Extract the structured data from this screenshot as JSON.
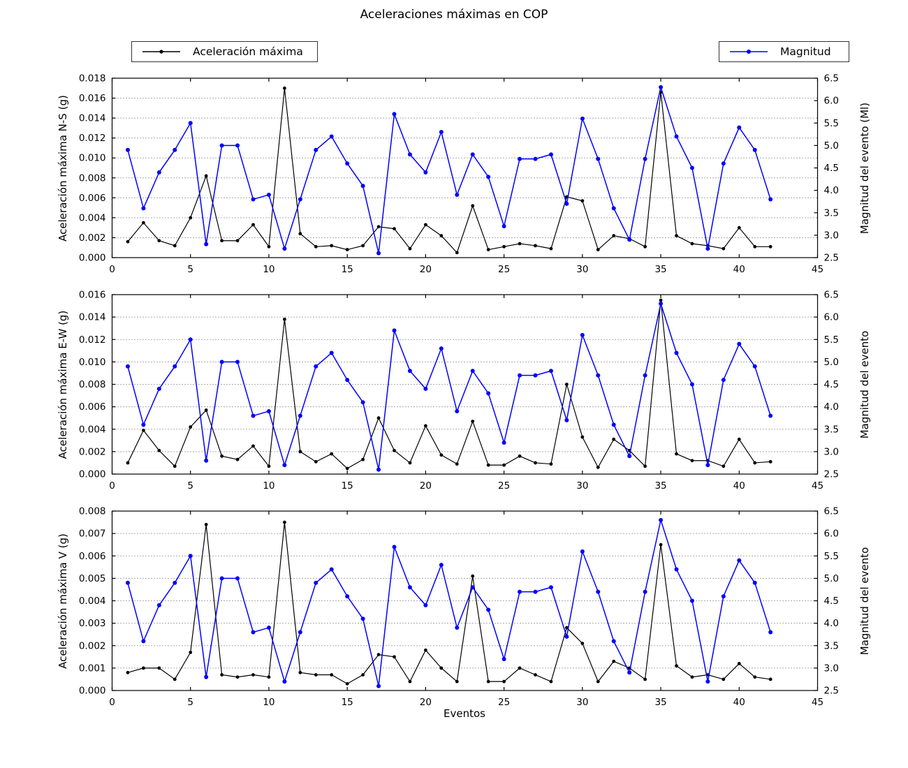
{
  "title": "Aceleraciones máximas en COP",
  "legend": {
    "acceleration_label": "Aceleración máxima",
    "magnitude_label": "Magnitud"
  },
  "colors": {
    "acceleration": "#000000",
    "magnitude": "#0000ff",
    "grid": "#555555",
    "axis": "#000000",
    "background": "#ffffff"
  },
  "chart_data": {
    "type": "line",
    "title": "Aceleraciones máximas en COP",
    "xlabel": "Eventos",
    "xlim": [
      0,
      45
    ],
    "xtick_step": 5,
    "grid": "dotted",
    "legend_position": "top-left and top-right",
    "x": [
      1,
      2,
      3,
      4,
      5,
      6,
      7,
      8,
      9,
      10,
      11,
      12,
      13,
      14,
      15,
      16,
      17,
      18,
      19,
      20,
      21,
      22,
      23,
      24,
      25,
      26,
      27,
      28,
      29,
      30,
      31,
      32,
      33,
      34,
      35,
      36,
      37,
      38,
      39,
      40,
      41,
      42
    ],
    "right_axis": {
      "min": 2.5,
      "max": 6.5,
      "tick_step": 0.5
    },
    "magnitude_series": {
      "name": "Magnitud",
      "axis": "right",
      "values": [
        4.9,
        3.6,
        4.4,
        4.9,
        5.5,
        2.8,
        5.0,
        5.0,
        3.8,
        3.9,
        2.7,
        3.8,
        4.9,
        5.2,
        4.6,
        4.1,
        2.6,
        5.7,
        4.8,
        4.4,
        5.3,
        3.9,
        4.8,
        4.3,
        3.2,
        4.7,
        4.7,
        4.8,
        3.7,
        5.6,
        4.7,
        3.6,
        2.9,
        4.7,
        6.3,
        5.2,
        4.5,
        2.7,
        4.6,
        5.4,
        4.9,
        3.8
      ]
    },
    "subplots": [
      {
        "ylabel": "Aceleración máxima N-S (g)",
        "y2label": "Magnitud del evento (Ml)",
        "ylim": [
          0,
          0.018
        ],
        "ytick_step": 0.002,
        "acceleration_name": "Aceleración máxima",
        "acceleration_values": [
          0.0016,
          0.0035,
          0.0017,
          0.0012,
          0.004,
          0.0082,
          0.0017,
          0.0017,
          0.0033,
          0.0011,
          0.017,
          0.0024,
          0.0011,
          0.0012,
          0.0008,
          0.0012,
          0.0031,
          0.0029,
          0.0009,
          0.0033,
          0.0022,
          0.0005,
          0.0052,
          0.0008,
          0.0011,
          0.0014,
          0.0012,
          0.0009,
          0.0061,
          0.0057,
          0.0008,
          0.0022,
          0.0019,
          0.0011,
          0.0166,
          0.0022,
          0.0014,
          0.0012,
          0.0009,
          0.003,
          0.0011,
          0.0011
        ]
      },
      {
        "ylabel": "Aceleración máxima E-W (g)",
        "y2label": "Magnitud del evento",
        "ylim": [
          0,
          0.016
        ],
        "ytick_step": 0.002,
        "acceleration_name": "Aceleración máxima",
        "acceleration_values": [
          0.001,
          0.0039,
          0.0021,
          0.0007,
          0.0042,
          0.0057,
          0.0016,
          0.0013,
          0.0025,
          0.0007,
          0.0138,
          0.002,
          0.0011,
          0.0018,
          0.0005,
          0.0013,
          0.005,
          0.0021,
          0.001,
          0.0043,
          0.0017,
          0.0009,
          0.0047,
          0.0008,
          0.0008,
          0.0016,
          0.001,
          0.0009,
          0.008,
          0.0033,
          0.0006,
          0.0031,
          0.0021,
          0.0007,
          0.0155,
          0.0018,
          0.0012,
          0.0012,
          0.0007,
          0.0031,
          0.001,
          0.0011
        ]
      },
      {
        "ylabel": "Aceleración máxima V (g)",
        "y2label": "Magnitud del evento",
        "ylim": [
          0,
          0.008
        ],
        "ytick_step": 0.001,
        "acceleration_name": "Aceleración máxima",
        "acceleration_values": [
          0.0008,
          0.001,
          0.001,
          0.0005,
          0.0017,
          0.0074,
          0.0007,
          0.0006,
          0.0007,
          0.0006,
          0.0075,
          0.0008,
          0.0007,
          0.0007,
          0.0003,
          0.0007,
          0.0016,
          0.0015,
          0.0004,
          0.0018,
          0.001,
          0.0004,
          0.0051,
          0.0004,
          0.0004,
          0.001,
          0.0007,
          0.0004,
          0.0028,
          0.0021,
          0.0004,
          0.0013,
          0.001,
          0.0005,
          0.0065,
          0.0011,
          0.0006,
          0.0007,
          0.0005,
          0.0012,
          0.0006,
          0.0005
        ]
      }
    ]
  }
}
